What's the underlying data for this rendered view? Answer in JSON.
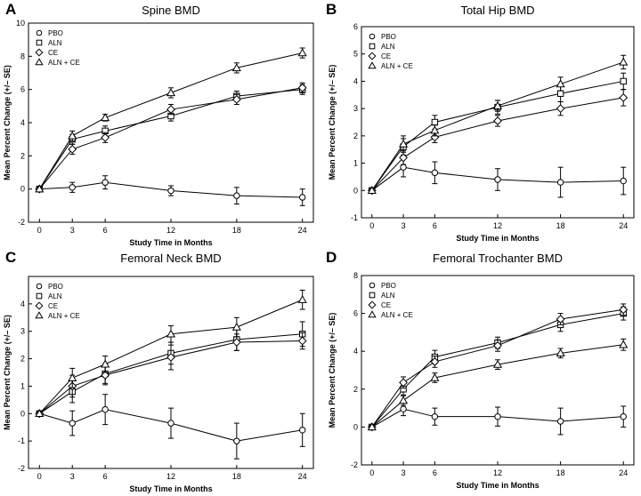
{
  "chart_data": [
    {
      "type": "line",
      "panel_label": "A",
      "title": "Spine BMD",
      "xlabel": "Study Time in Months",
      "ylabel": "Mean Percent Change (+/– SE)",
      "x": [
        0,
        3,
        6,
        12,
        18,
        24
      ],
      "ylim": [
        -2,
        10
      ],
      "yticks": [
        -2,
        0,
        2,
        4,
        6,
        8,
        10
      ],
      "xticks": [
        0,
        3,
        6,
        12,
        18,
        24
      ],
      "legend_position": "top-left",
      "series": [
        {
          "name": "PBO",
          "marker": "circle",
          "values": [
            0,
            0.1,
            0.4,
            -0.1,
            -0.4,
            -0.5
          ],
          "errors": [
            0,
            0.3,
            0.4,
            0.3,
            0.5,
            0.5
          ]
        },
        {
          "name": "ALN",
          "marker": "square",
          "values": [
            0,
            3.0,
            3.5,
            4.4,
            5.6,
            6.0
          ],
          "errors": [
            0,
            0.3,
            0.3,
            0.3,
            0.3,
            0.3
          ]
        },
        {
          "name": "CE",
          "marker": "diamond",
          "values": [
            0,
            2.4,
            3.1,
            4.8,
            5.4,
            6.1
          ],
          "errors": [
            0,
            0.3,
            0.3,
            0.3,
            0.3,
            0.3
          ]
        },
        {
          "name": "ALN + CE",
          "marker": "triangle",
          "values": [
            0,
            3.2,
            4.3,
            5.8,
            7.3,
            8.2
          ],
          "errors": [
            0,
            0.3,
            0.2,
            0.3,
            0.3,
            0.3
          ]
        }
      ]
    },
    {
      "type": "line",
      "panel_label": "B",
      "title": "Total Hip BMD",
      "xlabel": "Study Time in Months",
      "ylabel": "Mean Percent Change (+/– SE)",
      "x": [
        0,
        3,
        6,
        12,
        18,
        24
      ],
      "ylim": [
        -1,
        6
      ],
      "yticks": [
        -1,
        0,
        1,
        2,
        3,
        4,
        5,
        6
      ],
      "xticks": [
        0,
        3,
        6,
        12,
        18,
        24
      ],
      "legend_position": "top-left",
      "series": [
        {
          "name": "PBO",
          "marker": "circle",
          "values": [
            0,
            0.85,
            0.65,
            0.4,
            0.3,
            0.35
          ],
          "errors": [
            0,
            0.35,
            0.4,
            0.4,
            0.55,
            0.5
          ]
        },
        {
          "name": "ALN",
          "marker": "square",
          "values": [
            0,
            1.6,
            2.5,
            3.05,
            3.55,
            4.0
          ],
          "errors": [
            0,
            0.3,
            0.25,
            0.25,
            0.3,
            0.3
          ]
        },
        {
          "name": "CE",
          "marker": "diamond",
          "values": [
            0,
            1.2,
            1.95,
            2.55,
            3.0,
            3.4
          ],
          "errors": [
            0,
            0.25,
            0.2,
            0.2,
            0.25,
            0.3
          ]
        },
        {
          "name": "ALN + CE",
          "marker": "triangle",
          "values": [
            0,
            1.7,
            2.2,
            3.1,
            3.9,
            4.7
          ],
          "errors": [
            0,
            0.3,
            0.2,
            0.2,
            0.25,
            0.25
          ]
        }
      ]
    },
    {
      "type": "line",
      "panel_label": "C",
      "title": "Femoral Neck BMD",
      "xlabel": "Study Time in Months",
      "ylabel": "Mean Percent Change (+/– SE)",
      "x": [
        0,
        3,
        6,
        12,
        18,
        24
      ],
      "ylim": [
        -2,
        5
      ],
      "yticks": [
        -2,
        -1,
        0,
        1,
        2,
        3,
        4
      ],
      "xticks": [
        0,
        3,
        6,
        12,
        18,
        24
      ],
      "legend_position": "top-left",
      "series": [
        {
          "name": "PBO",
          "marker": "circle",
          "values": [
            0,
            -0.35,
            0.15,
            -0.35,
            -1.0,
            -0.6
          ],
          "errors": [
            0,
            0.45,
            0.55,
            0.55,
            0.65,
            0.6
          ]
        },
        {
          "name": "ALN",
          "marker": "square",
          "values": [
            0,
            0.8,
            1.45,
            2.2,
            2.7,
            2.9
          ],
          "errors": [
            0,
            0.4,
            0.35,
            0.4,
            0.4,
            0.45
          ]
        },
        {
          "name": "CE",
          "marker": "diamond",
          "values": [
            0,
            1.0,
            1.4,
            2.05,
            2.6,
            2.65
          ],
          "errors": [
            0,
            0.4,
            0.35,
            0.45,
            0.3,
            0.3
          ]
        },
        {
          "name": "ALN + CE",
          "marker": "triangle",
          "values": [
            0,
            1.3,
            1.8,
            2.9,
            3.15,
            4.15
          ],
          "errors": [
            0,
            0.35,
            0.3,
            0.3,
            0.35,
            0.35
          ]
        }
      ]
    },
    {
      "type": "line",
      "panel_label": "D",
      "title": "Femoral Trochanter BMD",
      "xlabel": "Study Time in Months",
      "ylabel": "Mean Percent Change (+/– SE)",
      "x": [
        0,
        3,
        6,
        12,
        18,
        24
      ],
      "ylim": [
        -2,
        8
      ],
      "yticks": [
        -2,
        0,
        2,
        4,
        6,
        8
      ],
      "xticks": [
        0,
        3,
        6,
        12,
        18,
        24
      ],
      "legend_position": "top-left",
      "series": [
        {
          "name": "PBO",
          "marker": "circle",
          "values": [
            0,
            0.95,
            0.55,
            0.55,
            0.3,
            0.55
          ],
          "errors": [
            0,
            0.35,
            0.45,
            0.5,
            0.7,
            0.55
          ]
        },
        {
          "name": "ALN",
          "marker": "square",
          "values": [
            0,
            2.0,
            3.7,
            4.45,
            5.4,
            6.0
          ],
          "errors": [
            0,
            0.3,
            0.35,
            0.3,
            0.35,
            0.35
          ]
        },
        {
          "name": "CE",
          "marker": "diamond",
          "values": [
            0,
            2.35,
            3.45,
            4.3,
            5.7,
            6.2
          ],
          "errors": [
            0,
            0.3,
            0.3,
            0.3,
            0.3,
            0.3
          ]
        },
        {
          "name": "ALN + CE",
          "marker": "triangle",
          "values": [
            0,
            1.4,
            2.6,
            3.3,
            3.9,
            4.35
          ],
          "errors": [
            0,
            0.25,
            0.25,
            0.25,
            0.25,
            0.3
          ]
        }
      ]
    }
  ]
}
